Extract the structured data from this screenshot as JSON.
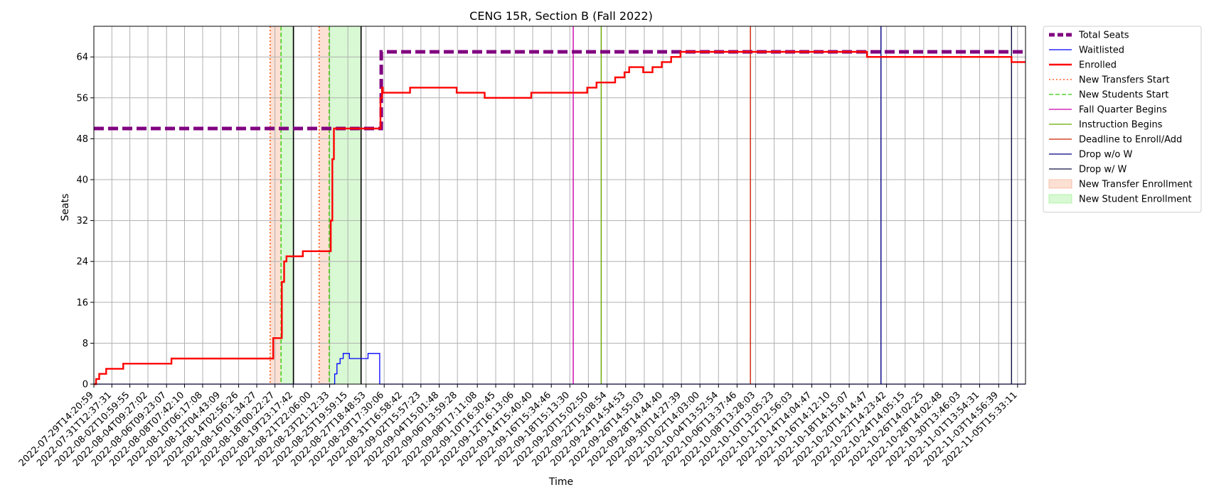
{
  "chart_data": {
    "type": "line",
    "title": "CENG 15R, Section B (Fall 2022)",
    "xlabel": "Time",
    "ylabel": "Seats",
    "ylim": [
      0,
      70
    ],
    "xlim": [
      "2022-07-29T14:20:59",
      "2022-11-06T12:00:00"
    ],
    "yticks": [
      0,
      8,
      16,
      24,
      32,
      40,
      48,
      56,
      64
    ],
    "grid": true,
    "legend_position": "outside-right",
    "x_ticks": [
      "2022-07-29T14:20:59",
      "2022-07-31T12:37:31",
      "2022-08-02T10:59:55",
      "2022-08-04T09:27:02",
      "2022-08-06T09:23:07",
      "2022-08-08T07:42:10",
      "2022-08-10T06:17:08",
      "2022-08-12T04:43:09",
      "2022-08-14T02:56:26",
      "2022-08-16T01:34:27",
      "2022-08-18T00:22:27",
      "2022-08-19T23:17:42",
      "2022-08-21T22:06:00",
      "2022-08-23T21:12:33",
      "2022-08-25T19:59:15",
      "2022-08-27T18:48:53",
      "2022-08-29T17:30:06",
      "2022-08-31T16:58:42",
      "2022-09-02T15:57:23",
      "2022-09-04T15:01:48",
      "2022-09-06T13:59:28",
      "2022-09-08T17:11:08",
      "2022-09-10T16:30:45",
      "2022-09-12T16:13:06",
      "2022-09-14T15:40:40",
      "2022-09-16T15:34:46",
      "2022-09-18T15:13:30",
      "2022-09-20T15:02:50",
      "2022-09-22T15:08:54",
      "2022-09-24T14:54:53",
      "2022-09-26T14:55:03",
      "2022-09-28T14:44:40",
      "2022-09-30T14:27:39",
      "2022-10-02T14:03:00",
      "2022-10-04T13:52:54",
      "2022-10-06T13:37:46",
      "2022-10-08T13:28:03",
      "2022-10-10T13:05:23",
      "2022-10-12T12:56:03",
      "2022-10-14T14:04:47",
      "2022-10-16T14:12:10",
      "2022-10-18T14:15:07",
      "2022-10-20T14:14:47",
      "2022-10-22T14:23:42",
      "2022-10-24T14:05:15",
      "2022-10-26T14:02:25",
      "2022-10-28T14:02:48",
      "2022-10-30T13:46:03",
      "2022-11-01T13:54:31",
      "2022-11-03T14:56:39",
      "2022-11-05T15:33:11"
    ],
    "series": [
      {
        "name": "Total Seats",
        "color": "#800080",
        "style": "dashed-thick",
        "points": [
          [
            "2022-07-29T14:20:59",
            50
          ],
          [
            "2022-08-29T02:00:00",
            50
          ],
          [
            "2022-08-29T10:00:00",
            65
          ],
          [
            "2022-11-06T12:00:00",
            65
          ]
        ]
      },
      {
        "name": "Waitlisted",
        "color": "#0000ff",
        "style": "solid-thin",
        "points": [
          [
            "2022-07-29T14:20:59",
            0
          ],
          [
            "2022-08-24T06:00:00",
            0
          ],
          [
            "2022-08-24T10:00:00",
            2
          ],
          [
            "2022-08-24T16:00:00",
            4
          ],
          [
            "2022-08-25T00:00:00",
            5
          ],
          [
            "2022-08-25T08:00:00",
            6
          ],
          [
            "2022-08-26T00:00:00",
            5
          ],
          [
            "2022-08-28T00:00:00",
            6
          ],
          [
            "2022-08-29T04:00:00",
            6
          ],
          [
            "2022-08-29T06:00:00",
            0
          ],
          [
            "2022-11-06T12:00:00",
            0
          ]
        ]
      },
      {
        "name": "Enrolled",
        "color": "#ff0000",
        "style": "solid-thick",
        "points": [
          [
            "2022-07-29T14:20:59",
            0
          ],
          [
            "2022-07-29T20:00:00",
            1
          ],
          [
            "2022-07-30T04:00:00",
            2
          ],
          [
            "2022-07-30T22:00:00",
            3
          ],
          [
            "2022-08-01T18:00:00",
            4
          ],
          [
            "2022-08-06T22:00:00",
            5
          ],
          [
            "2022-08-17T18:00:00",
            5
          ],
          [
            "2022-08-17T20:00:00",
            9
          ],
          [
            "2022-08-18T12:00:00",
            9
          ],
          [
            "2022-08-18T18:00:00",
            20
          ],
          [
            "2022-08-19T00:00:00",
            24
          ],
          [
            "2022-08-19T06:00:00",
            25
          ],
          [
            "2022-08-20T20:00:00",
            25
          ],
          [
            "2022-08-21T00:00:00",
            26
          ],
          [
            "2022-08-23T20:00:00",
            26
          ],
          [
            "2022-08-24T00:00:00",
            32
          ],
          [
            "2022-08-24T04:00:00",
            44
          ],
          [
            "2022-08-24T08:00:00",
            50
          ],
          [
            "2022-08-29T04:00:00",
            50
          ],
          [
            "2022-08-29T08:00:00",
            56
          ],
          [
            "2022-08-29T12:00:00",
            58
          ],
          [
            "2022-08-29T14:00:00",
            57
          ],
          [
            "2022-09-01T12:00:00",
            58
          ],
          [
            "2022-09-06T12:00:00",
            57
          ],
          [
            "2022-09-09T12:00:00",
            56
          ],
          [
            "2022-09-14T12:00:00",
            57
          ],
          [
            "2022-09-20T12:00:00",
            58
          ],
          [
            "2022-09-21T12:00:00",
            59
          ],
          [
            "2022-09-23T12:00:00",
            60
          ],
          [
            "2022-09-24T12:00:00",
            61
          ],
          [
            "2022-09-25T00:00:00",
            62
          ],
          [
            "2022-09-26T12:00:00",
            61
          ],
          [
            "2022-09-27T12:00:00",
            62
          ],
          [
            "2022-09-28T12:00:00",
            63
          ],
          [
            "2022-09-29T12:00:00",
            64
          ],
          [
            "2022-09-30T12:00:00",
            65
          ],
          [
            "2022-10-20T12:00:00",
            64
          ],
          [
            "2022-11-04T22:00:00",
            64
          ],
          [
            "2022-11-05T00:00:00",
            63
          ],
          [
            "2022-11-06T12:00:00",
            63
          ]
        ]
      }
    ],
    "vertical_lines": [
      {
        "name": "New Transfers Start",
        "color": "#ff4500",
        "style": "dotted",
        "x": [
          "2022-08-17T12:00:00",
          "2022-08-22T18:00:00"
        ]
      },
      {
        "name": "New Students Start",
        "color": "#33cc00",
        "style": "dashed",
        "x": [
          "2022-08-18T16:00:00",
          "2022-08-23T20:00:00"
        ]
      },
      {
        "name": "Fall Quarter Begins",
        "color": "#cc00aa",
        "style": "solid",
        "x": [
          "2022-09-19T00:00:00"
        ]
      },
      {
        "name": "Instruction Begins",
        "color": "#66aa00",
        "style": "solid",
        "x": [
          "2022-09-22T00:00:00"
        ]
      },
      {
        "name": "Deadline to Enroll/Add",
        "color": "#cc2200",
        "style": "solid",
        "x": [
          "2022-10-08T00:00:00"
        ]
      },
      {
        "name": "Drop w/o W",
        "color": "#000080",
        "style": "solid",
        "x": [
          "2022-10-22T00:00:00"
        ]
      },
      {
        "name": "Drop w/ W",
        "color": "#101040",
        "style": "solid",
        "x": [
          "2022-11-05T00:00:00"
        ]
      }
    ],
    "black_lines": [
      "2022-08-20T00:00:00",
      "2022-08-27T06:00:00"
    ],
    "spans": [
      {
        "name": "New Transfer Enrollment",
        "color": "#f4a582",
        "ranges": [
          [
            "2022-08-17T12:00:00",
            "2022-08-18T16:00:00"
          ],
          [
            "2022-08-22T18:00:00",
            "2022-08-23T20:00:00"
          ]
        ]
      },
      {
        "name": "New Student Enrollment",
        "color": "#90ee80",
        "ranges": [
          [
            "2022-08-18T16:00:00",
            "2022-08-20T00:00:00"
          ],
          [
            "2022-08-23T20:00:00",
            "2022-08-27T06:00:00"
          ]
        ]
      }
    ]
  }
}
